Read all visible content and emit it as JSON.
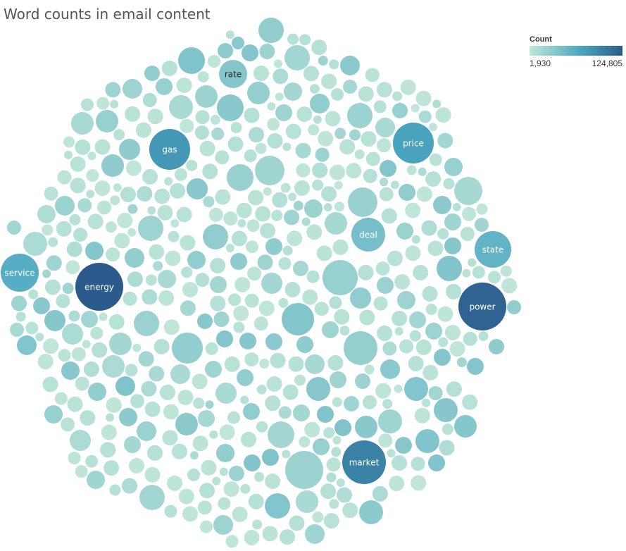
{
  "chart_data": {
    "type": "packed-bubble",
    "title": "Word counts in email content",
    "color_legend": {
      "title": "Count",
      "min_label": "1,930",
      "max_label": "124,805",
      "min": 1930,
      "max": 124805
    },
    "colors": {
      "low": "#bfe6d8",
      "mid": "#4aa6c0",
      "high": "#2b5b8c"
    },
    "labeled_bubbles": [
      {
        "label": "energy",
        "value": 124805
      },
      {
        "label": "power",
        "value": 118000
      },
      {
        "label": "market",
        "value": 96000
      },
      {
        "label": "gas",
        "value": 80000
      },
      {
        "label": "price",
        "value": 72000
      },
      {
        "label": "service",
        "value": 62000
      },
      {
        "label": "state",
        "value": 56000
      },
      {
        "label": "deal",
        "value": 44000
      },
      {
        "label": "rate",
        "value": 36000
      }
    ]
  }
}
